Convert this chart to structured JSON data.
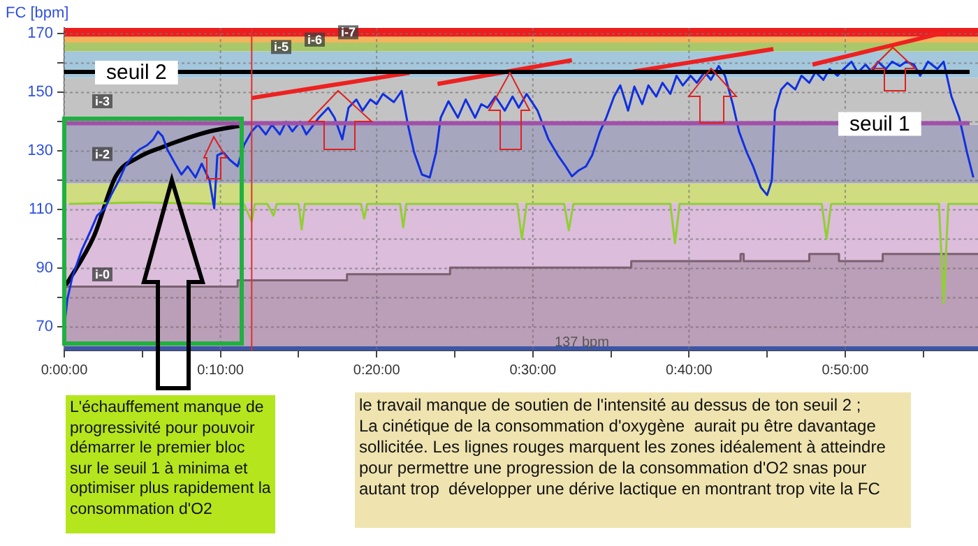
{
  "chart_data": {
    "type": "line",
    "ylabel": "FC [bpm]",
    "xlim": [
      0,
      58.5
    ],
    "ylim": [
      62,
      172
    ],
    "xticks": [
      {
        "value": 0,
        "label": "0:00:00"
      },
      {
        "value": 5,
        "label": null
      },
      {
        "value": 10,
        "label": "0:10:00"
      },
      {
        "value": 15,
        "label": null
      },
      {
        "value": 20,
        "label": "0:20:00"
      },
      {
        "value": 25,
        "label": null
      },
      {
        "value": 30,
        "label": "0:30:00"
      },
      {
        "value": 35,
        "label": null
      },
      {
        "value": 40,
        "label": "0:40:00"
      },
      {
        "value": 45,
        "label": null
      },
      {
        "value": 50,
        "label": "0:50:00"
      },
      {
        "value": 55,
        "label": null
      }
    ],
    "yticks": [
      70,
      {
        "value": 80,
        "label": null
      },
      90,
      {
        "value": 100,
        "label": null
      },
      110,
      {
        "value": 120,
        "label": null
      },
      130,
      {
        "value": 140,
        "label": null
      },
      150,
      {
        "value": 160,
        "label": null
      },
      170
    ],
    "grid": true,
    "marker": "none",
    "legend": false,
    "series": [
      {
        "color": "#1030e0",
        "x": [
          0,
          0.2,
          0.5,
          1.1,
          1.7,
          2.1,
          2.6,
          3.0,
          3.5,
          3.9,
          4.4,
          4.8,
          5.3,
          5.7,
          6.0,
          6.3,
          6.6,
          7.1,
          7.5,
          7.9,
          8.4,
          8.8,
          9.3,
          9.6,
          9.8,
          10.2,
          10.6,
          11.1,
          11.5,
          12.0,
          12.4,
          12.9,
          13.3,
          13.8,
          14.2,
          14.6,
          15.1,
          15.5,
          16.3,
          16.9,
          17.3,
          17.8,
          18.2,
          18.7,
          19.1,
          19.6,
          20.0,
          20.4,
          21.1,
          21.6,
          22.0,
          22.4,
          22.9,
          23.4,
          23.8,
          24.1,
          24.6,
          25.2,
          25.7,
          26.3,
          26.7,
          27.1,
          27.6,
          28.2,
          28.7,
          29.1,
          29.6,
          30.3,
          31.0,
          31.6,
          32.1,
          32.5,
          32.9,
          33.4,
          33.8,
          34.3,
          34.7,
          35.2,
          35.6,
          36.1,
          36.5,
          37.0,
          37.4,
          37.9,
          38.3,
          38.8,
          39.2,
          39.6,
          40.1,
          40.5,
          41.0,
          41.4,
          41.9,
          42.3,
          42.8,
          43.2,
          43.7,
          44.1,
          44.6,
          45.0,
          45.3,
          45.5,
          45.9,
          46.3,
          46.8,
          47.2,
          47.7,
          48.1,
          48.6,
          49.0,
          49.5,
          49.9,
          50.4,
          50.8,
          51.3,
          51.7,
          52.1,
          52.6,
          53.0,
          53.5,
          53.9,
          54.4,
          54.8,
          55.3,
          55.9,
          56.3,
          56.8,
          57.3,
          57.8,
          58.2
        ],
        "values": [
          70,
          79.5,
          86.7,
          96,
          103,
          108,
          110.5,
          115,
          120,
          124.8,
          128.6,
          130.5,
          132,
          134,
          136.7,
          135,
          130.5,
          125.7,
          122,
          124.8,
          121,
          125.7,
          120,
          110.5,
          128.6,
          129.5,
          127,
          124.8,
          132,
          136.7,
          139,
          135.7,
          139,
          135.7,
          140,
          136.7,
          140,
          135.7,
          141.4,
          144.8,
          141.4,
          134,
          144.8,
          147.6,
          143.8,
          147.6,
          146,
          149.5,
          146.7,
          150.5,
          139,
          129.5,
          122,
          121,
          129.5,
          141.4,
          147,
          141.4,
          147.6,
          141.4,
          146,
          144.8,
          148.6,
          143.8,
          148.6,
          144.8,
          149.5,
          143.8,
          134,
          128.6,
          124.8,
          121.4,
          123.3,
          124.8,
          128.6,
          136.7,
          141.4,
          148.6,
          152.4,
          143.8,
          152,
          146,
          152.4,
          148.6,
          153.3,
          149.5,
          155.7,
          152.4,
          155.7,
          153.3,
          157,
          154.3,
          159,
          155.7,
          146,
          136.7,
          129.5,
          124.8,
          117.6,
          115,
          120,
          143.8,
          151,
          153.3,
          151,
          155.7,
          153.3,
          157,
          154.3,
          158,
          155.7,
          158,
          160.5,
          156.7,
          159.5,
          157,
          160.5,
          158,
          160.5,
          159,
          160.5,
          159.5,
          155.7,
          160.5,
          158,
          160.5,
          148.6,
          141.4,
          129.5,
          121
        ]
      },
      {
        "color": "#90d030",
        "x": [
          0.3,
          5,
          10,
          11.5,
          12.0,
          12.2,
          13,
          13.4,
          13.6,
          15,
          15.2,
          15.4,
          19,
          19.2,
          19.4,
          21.5,
          21.7,
          21.9,
          29,
          29.3,
          29.6,
          32,
          32.3,
          32.6,
          38.8,
          39.1,
          39.4,
          48.5,
          48.8,
          49.1,
          56,
          56.3,
          56.6,
          58.5
        ],
        "values": [
          112,
          112.5,
          112,
          112,
          106,
          112,
          112,
          108,
          112,
          112,
          103.3,
          112,
          112,
          107,
          112,
          112,
          104,
          112,
          112,
          100,
          112,
          112,
          103,
          112,
          112,
          98.6,
          112,
          112,
          100,
          112,
          112,
          78,
          112,
          112
        ]
      },
      {
        "type": "area",
        "color": "#7a6070",
        "x": [
          0,
          11.1,
          11.1,
          18.1,
          18.1,
          24.7,
          24.7,
          36.3,
          36.3,
          43.3,
          43.3,
          43.5,
          43.5,
          47.7,
          47.7,
          49.6,
          49.6,
          52.4,
          52.4,
          58.5
        ],
        "values": [
          83.8,
          83.8,
          85.9,
          85.9,
          88,
          88,
          90.3,
          90.3,
          92.5,
          92.5,
          94.9,
          94.9,
          92.5,
          92.5,
          94.9,
          94.9,
          92.5,
          92.5,
          94.9,
          94.9
        ]
      },
      {
        "color": "#000000",
        "x": [
          0,
          1.9,
          3.3,
          4.8,
          6.3,
          7.8,
          9.3,
          11.2
        ],
        "values": [
          83.3,
          101,
          121.4,
          128,
          131.4,
          134.3,
          136.7,
          138.6
        ]
      },
      {
        "color": "#ee2020",
        "x": [
          12.0,
          22.1
        ],
        "values": [
          148.1,
          156.7
        ]
      },
      {
        "color": "#ee2020",
        "x": [
          23.9,
          32.5
        ],
        "values": [
          152.9,
          161.0
        ]
      },
      {
        "color": "#ee2020",
        "x": [
          36.4,
          45.4
        ],
        "values": [
          157.1,
          164.8
        ]
      },
      {
        "color": "#ee2020",
        "x": [
          47.9,
          56.4
        ],
        "values": [
          159.5,
          170.5
        ]
      }
    ],
    "bands": [
      {
        "axis": "y",
        "from": 62,
        "to": 63.5,
        "label": null,
        "color": "#1f50c0"
      },
      {
        "axis": "y",
        "from": 63.5,
        "to": 112.4,
        "label": "i-0",
        "color": "#dcbddc"
      },
      {
        "axis": "y",
        "from": 112.4,
        "to": 119,
        "label": null,
        "color": "#cfdc80"
      },
      {
        "axis": "y",
        "from": 119,
        "to": 139,
        "label": "i-2",
        "color": "#a6a6bf"
      },
      {
        "axis": "y",
        "from": 139,
        "to": 155,
        "label": "i-3",
        "color": "#c3c3c3"
      },
      {
        "axis": "y",
        "from": 155,
        "to": 164,
        "label": null,
        "color": "#a4c7dc"
      },
      {
        "axis": "y",
        "from": 164,
        "to": 167,
        "label": "i-5",
        "color": "#a9c86a"
      },
      {
        "axis": "y",
        "from": 167,
        "to": 169,
        "label": "i-6",
        "color": "#f2b45c"
      },
      {
        "axis": "y",
        "from": 169,
        "to": 172,
        "label": "i-7",
        "color": "#ee1c1c"
      }
    ],
    "ref_lines": [
      {
        "axis": "y",
        "value": 157,
        "label": "seuil 2",
        "color": "#000000"
      },
      {
        "axis": "y",
        "value": 139.5,
        "label": "seuil 1",
        "color": "#a050a8"
      },
      {
        "axis": "x",
        "value": 12,
        "label": null,
        "color": "#e03030"
      }
    ],
    "annotations": [
      "137 bpm",
      "L'échauffement manque de progressivité pour pouvoir démarrer le premier bloc sur le seuil 1 à minima et optimiser plus rapidement la consommation d'O2",
      "le travail manque de soutien de l'intensité au dessus de ton seuil 2 ;\nLa cinétique de la consommation d'oxygène  aurait pu être davantage sollicitée. Les lignes rouges marquent les zones idéalement à atteindre pour permettre une progression de la consommation d'O2 snas pour autant trop  développer une dérive lactique en montrant trop vite la FC"
    ]
  }
}
